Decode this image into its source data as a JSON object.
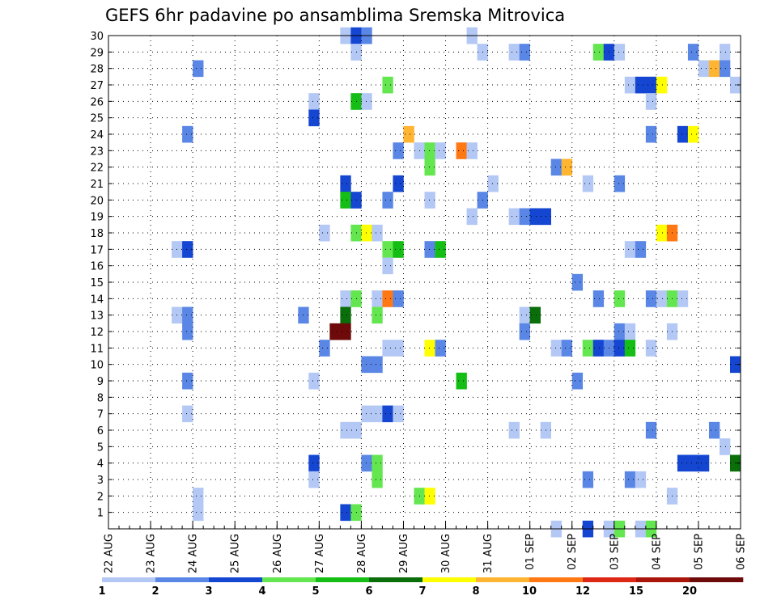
{
  "chart_data": {
    "type": "heatmap",
    "title": "GEFS 6hr padavine po ansamblima Sremska Mitrovica",
    "x_tick_labels": [
      "22 AUG",
      "23 AUG",
      "24 AUG",
      "25 AUG",
      "26 AUG",
      "27 AUG",
      "28 AUG",
      "29 AUG",
      "30 AUG",
      "31 AUG",
      "01 SEP",
      "02 SEP",
      "03 SEP",
      "04 SEP",
      "05 SEP",
      "06 SEP"
    ],
    "y_tick_labels": [
      "1",
      "2",
      "3",
      "4",
      "5",
      "6",
      "7",
      "8",
      "9",
      "10",
      "11",
      "12",
      "13",
      "14",
      "15",
      "16",
      "17",
      "18",
      "19",
      "20",
      "21",
      "22",
      "23",
      "24",
      "25",
      "26",
      "27",
      "28",
      "29",
      "30"
    ],
    "xlim": [
      0,
      60
    ],
    "ylim": [
      0,
      30
    ],
    "grid": true,
    "legend": {
      "placement": "bottom",
      "labels": [
        "1",
        "2",
        "3",
        "4",
        "5",
        "6",
        "7",
        "8",
        "10",
        "12",
        "15",
        "20"
      ],
      "colors": [
        "#b4c8f5",
        "#5a87e6",
        "#1446d2",
        "#64e650",
        "#14be14",
        "#0a6e0a",
        "#ffff00",
        "#ffb432",
        "#ff7814",
        "#dc2814",
        "#aa140a",
        "#6e0a0a"
      ]
    },
    "cells_format": "[time_step, member, color_class]",
    "cells": [
      [
        22,
        30,
        0
      ],
      [
        23,
        30,
        2
      ],
      [
        24,
        30,
        1
      ],
      [
        34,
        30,
        0
      ],
      [
        23,
        29,
        0
      ],
      [
        35,
        29,
        0
      ],
      [
        38,
        29,
        0
      ],
      [
        39,
        29,
        1
      ],
      [
        46,
        29,
        3
      ],
      [
        47,
        29,
        2
      ],
      [
        48,
        29,
        0
      ],
      [
        55,
        29,
        1
      ],
      [
        58,
        29,
        0
      ],
      [
        8,
        28,
        1
      ],
      [
        56,
        28,
        0
      ],
      [
        57,
        28,
        7
      ],
      [
        58,
        28,
        1
      ],
      [
        26,
        27,
        3
      ],
      [
        49,
        27,
        0
      ],
      [
        50,
        27,
        2
      ],
      [
        51,
        27,
        2
      ],
      [
        52,
        27,
        6
      ],
      [
        59,
        27,
        0
      ],
      [
        19,
        26,
        0
      ],
      [
        23,
        26,
        4
      ],
      [
        24,
        26,
        0
      ],
      [
        51,
        26,
        0
      ],
      [
        19,
        25,
        2
      ],
      [
        7,
        24,
        1
      ],
      [
        28,
        24,
        7
      ],
      [
        51,
        24,
        1
      ],
      [
        54,
        24,
        2
      ],
      [
        55,
        24,
        6
      ],
      [
        27,
        23,
        1
      ],
      [
        29,
        23,
        0
      ],
      [
        30,
        23,
        3
      ],
      [
        31,
        23,
        0
      ],
      [
        33,
        23,
        8
      ],
      [
        34,
        23,
        0
      ],
      [
        30,
        22,
        3
      ],
      [
        42,
        22,
        1
      ],
      [
        43,
        22,
        7
      ],
      [
        22,
        21,
        2
      ],
      [
        27,
        21,
        2
      ],
      [
        36,
        21,
        0
      ],
      [
        45,
        21,
        0
      ],
      [
        48,
        21,
        1
      ],
      [
        22,
        20,
        4
      ],
      [
        23,
        20,
        2
      ],
      [
        26,
        20,
        1
      ],
      [
        30,
        20,
        0
      ],
      [
        35,
        20,
        1
      ],
      [
        34,
        19,
        0
      ],
      [
        38,
        19,
        0
      ],
      [
        39,
        19,
        1
      ],
      [
        40,
        19,
        2
      ],
      [
        41,
        19,
        2
      ],
      [
        20,
        18,
        0
      ],
      [
        23,
        18,
        3
      ],
      [
        24,
        18,
        6
      ],
      [
        25,
        18,
        0
      ],
      [
        52,
        18,
        6
      ],
      [
        53,
        18,
        8
      ],
      [
        6,
        17,
        0
      ],
      [
        7,
        17,
        2
      ],
      [
        26,
        17,
        3
      ],
      [
        27,
        17,
        4
      ],
      [
        30,
        17,
        1
      ],
      [
        31,
        17,
        4
      ],
      [
        49,
        17,
        0
      ],
      [
        50,
        17,
        1
      ],
      [
        26,
        16,
        0
      ],
      [
        44,
        15,
        1
      ],
      [
        22,
        14,
        0
      ],
      [
        23,
        14,
        3
      ],
      [
        25,
        14,
        0
      ],
      [
        26,
        14,
        8
      ],
      [
        27,
        14,
        1
      ],
      [
        46,
        14,
        1
      ],
      [
        48,
        14,
        3
      ],
      [
        51,
        14,
        1
      ],
      [
        52,
        14,
        0
      ],
      [
        53,
        14,
        3
      ],
      [
        54,
        14,
        0
      ],
      [
        6,
        13,
        0
      ],
      [
        7,
        13,
        1
      ],
      [
        18,
        13,
        1
      ],
      [
        22,
        13,
        5
      ],
      [
        25,
        13,
        3
      ],
      [
        39,
        13,
        0
      ],
      [
        40,
        13,
        5
      ],
      [
        7,
        12,
        1
      ],
      [
        21,
        12,
        11
      ],
      [
        22,
        12,
        11
      ],
      [
        39,
        12,
        1
      ],
      [
        48,
        12,
        1
      ],
      [
        49,
        12,
        0
      ],
      [
        53,
        12,
        0
      ],
      [
        20,
        11,
        1
      ],
      [
        26,
        11,
        0
      ],
      [
        27,
        11,
        0
      ],
      [
        30,
        11,
        6
      ],
      [
        31,
        11,
        1
      ],
      [
        42,
        11,
        0
      ],
      [
        43,
        11,
        1
      ],
      [
        45,
        11,
        3
      ],
      [
        46,
        11,
        2
      ],
      [
        47,
        11,
        1
      ],
      [
        48,
        11,
        2
      ],
      [
        49,
        11,
        4
      ],
      [
        51,
        11,
        0
      ],
      [
        24,
        10,
        1
      ],
      [
        25,
        10,
        1
      ],
      [
        59,
        10,
        2
      ],
      [
        7,
        9,
        1
      ],
      [
        19,
        9,
        0
      ],
      [
        33,
        9,
        4
      ],
      [
        44,
        9,
        1
      ],
      [
        7,
        7,
        0
      ],
      [
        24,
        7,
        0
      ],
      [
        25,
        7,
        0
      ],
      [
        26,
        7,
        2
      ],
      [
        27,
        7,
        0
      ],
      [
        22,
        6,
        0
      ],
      [
        23,
        6,
        0
      ],
      [
        38,
        6,
        0
      ],
      [
        41,
        6,
        0
      ],
      [
        51,
        6,
        1
      ],
      [
        57,
        6,
        1
      ],
      [
        58,
        5,
        0
      ],
      [
        19,
        4,
        2
      ],
      [
        24,
        4,
        1
      ],
      [
        25,
        4,
        3
      ],
      [
        54,
        4,
        2
      ],
      [
        55,
        4,
        2
      ],
      [
        56,
        4,
        2
      ],
      [
        59,
        4,
        5
      ],
      [
        19,
        3,
        0
      ],
      [
        25,
        3,
        3
      ],
      [
        45,
        3,
        1
      ],
      [
        49,
        3,
        1
      ],
      [
        50,
        3,
        0
      ],
      [
        8,
        2,
        0
      ],
      [
        29,
        2,
        3
      ],
      [
        30,
        2,
        6
      ],
      [
        53,
        2,
        0
      ],
      [
        8,
        1,
        0
      ],
      [
        22,
        1,
        2
      ],
      [
        23,
        1,
        3
      ],
      [
        42,
        0,
        0
      ],
      [
        45,
        0,
        2
      ],
      [
        47,
        0,
        0
      ],
      [
        48,
        0,
        3
      ],
      [
        50,
        0,
        0
      ],
      [
        51,
        0,
        3
      ]
    ]
  }
}
